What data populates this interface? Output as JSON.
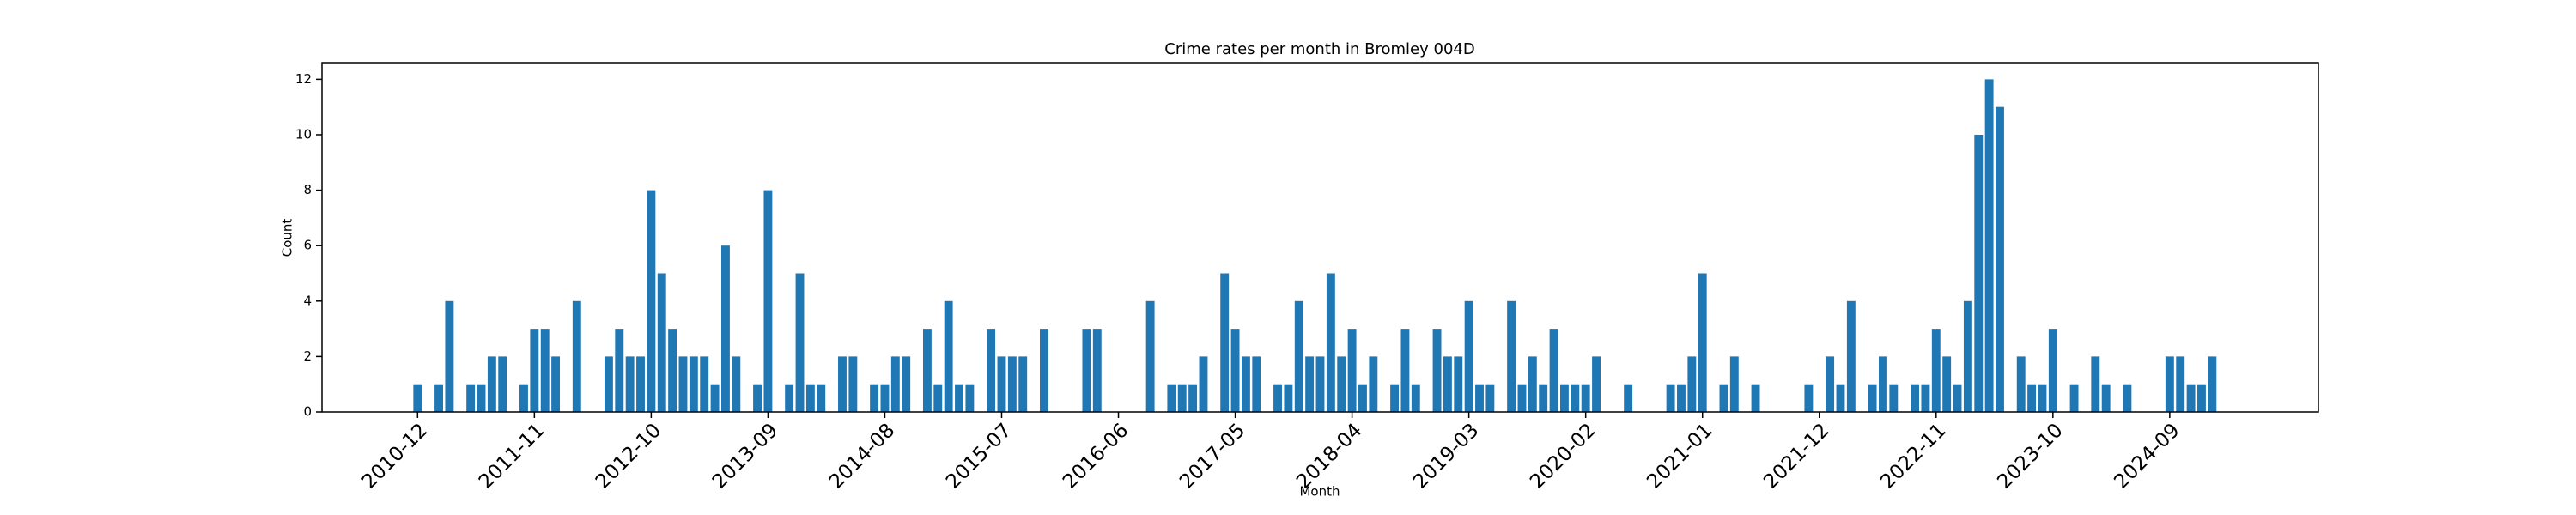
{
  "chart_data": {
    "type": "bar",
    "title": "Crime rates per month in Bromley 004D",
    "x_label": "Month",
    "y_label": "Count",
    "color": "#1f77b4",
    "x": [
      "2010-12",
      "2011-02",
      "2011-03",
      "2011-05",
      "2011-06",
      "2011-07",
      "2011-08",
      "2011-10",
      "2011-11",
      "2011-12",
      "2012-01",
      "2012-03",
      "2012-06",
      "2012-07",
      "2012-08",
      "2012-09",
      "2012-10",
      "2012-11",
      "2012-12",
      "2013-01",
      "2013-02",
      "2013-03",
      "2013-04",
      "2013-05",
      "2013-06",
      "2013-08",
      "2013-09",
      "2013-11",
      "2013-12",
      "2014-01",
      "2014-02",
      "2014-04",
      "2014-05",
      "2014-07",
      "2014-08",
      "2014-09",
      "2014-10",
      "2014-12",
      "2015-01",
      "2015-02",
      "2015-03",
      "2015-04",
      "2015-06",
      "2015-07",
      "2015-08",
      "2015-09",
      "2015-11",
      "2016-03",
      "2016-04",
      "2016-09",
      "2016-11",
      "2016-12",
      "2017-01",
      "2017-02",
      "2017-04",
      "2017-05",
      "2017-06",
      "2017-07",
      "2017-09",
      "2017-10",
      "2017-11",
      "2017-12",
      "2018-01",
      "2018-02",
      "2018-03",
      "2018-04",
      "2018-05",
      "2018-06",
      "2018-08",
      "2018-09",
      "2018-10",
      "2018-12",
      "2019-01",
      "2019-02",
      "2019-03",
      "2019-04",
      "2019-05",
      "2019-07",
      "2019-08",
      "2019-09",
      "2019-10",
      "2019-11",
      "2019-12",
      "2020-01",
      "2020-02",
      "2020-03",
      "2020-06",
      "2020-10",
      "2020-11",
      "2020-12",
      "2021-01",
      "2021-03",
      "2021-04",
      "2021-06",
      "2021-11",
      "2022-01",
      "2022-02",
      "2022-03",
      "2022-05",
      "2022-06",
      "2022-07",
      "2022-09",
      "2022-10",
      "2022-11",
      "2022-12",
      "2023-01",
      "2023-02",
      "2023-03",
      "2023-04",
      "2023-05",
      "2023-07",
      "2023-08",
      "2023-09",
      "2023-10",
      "2023-12",
      "2024-02",
      "2024-03",
      "2024-05",
      "2024-09",
      "2024-10",
      "2024-11",
      "2024-12",
      "2025-01"
    ],
    "values": [
      1,
      1,
      4,
      1,
      1,
      2,
      2,
      1,
      3,
      3,
      2,
      4,
      2,
      3,
      2,
      2,
      8,
      5,
      3,
      2,
      2,
      2,
      1,
      6,
      2,
      1,
      8,
      1,
      5,
      1,
      1,
      2,
      2,
      1,
      1,
      2,
      2,
      3,
      1,
      4,
      1,
      1,
      3,
      2,
      2,
      2,
      3,
      3,
      3,
      4,
      1,
      1,
      1,
      2,
      5,
      3,
      2,
      2,
      1,
      1,
      4,
      2,
      2,
      5,
      2,
      3,
      1,
      2,
      1,
      3,
      1,
      3,
      2,
      2,
      4,
      1,
      1,
      4,
      1,
      2,
      1,
      3,
      1,
      1,
      1,
      2,
      1,
      1,
      1,
      2,
      5,
      1,
      2,
      1,
      1,
      2,
      1,
      4,
      1,
      2,
      1,
      1,
      1,
      3,
      2,
      1,
      4,
      10,
      12,
      11,
      2,
      1,
      1,
      3,
      1,
      2,
      1,
      1,
      2,
      2,
      1,
      1,
      2
    ],
    "xlim": [
      "2010-03",
      "2025-11"
    ],
    "xticks": [
      "2010-12",
      "2011-11",
      "2012-10",
      "2013-09",
      "2014-08",
      "2015-07",
      "2016-06",
      "2017-05",
      "2018-04",
      "2019-03",
      "2020-02",
      "2021-01",
      "2021-12",
      "2022-11",
      "2023-10",
      "2024-09"
    ],
    "ylim": [
      0,
      12.6
    ],
    "yticks": [
      0,
      2,
      4,
      6,
      8,
      10,
      12
    ]
  }
}
